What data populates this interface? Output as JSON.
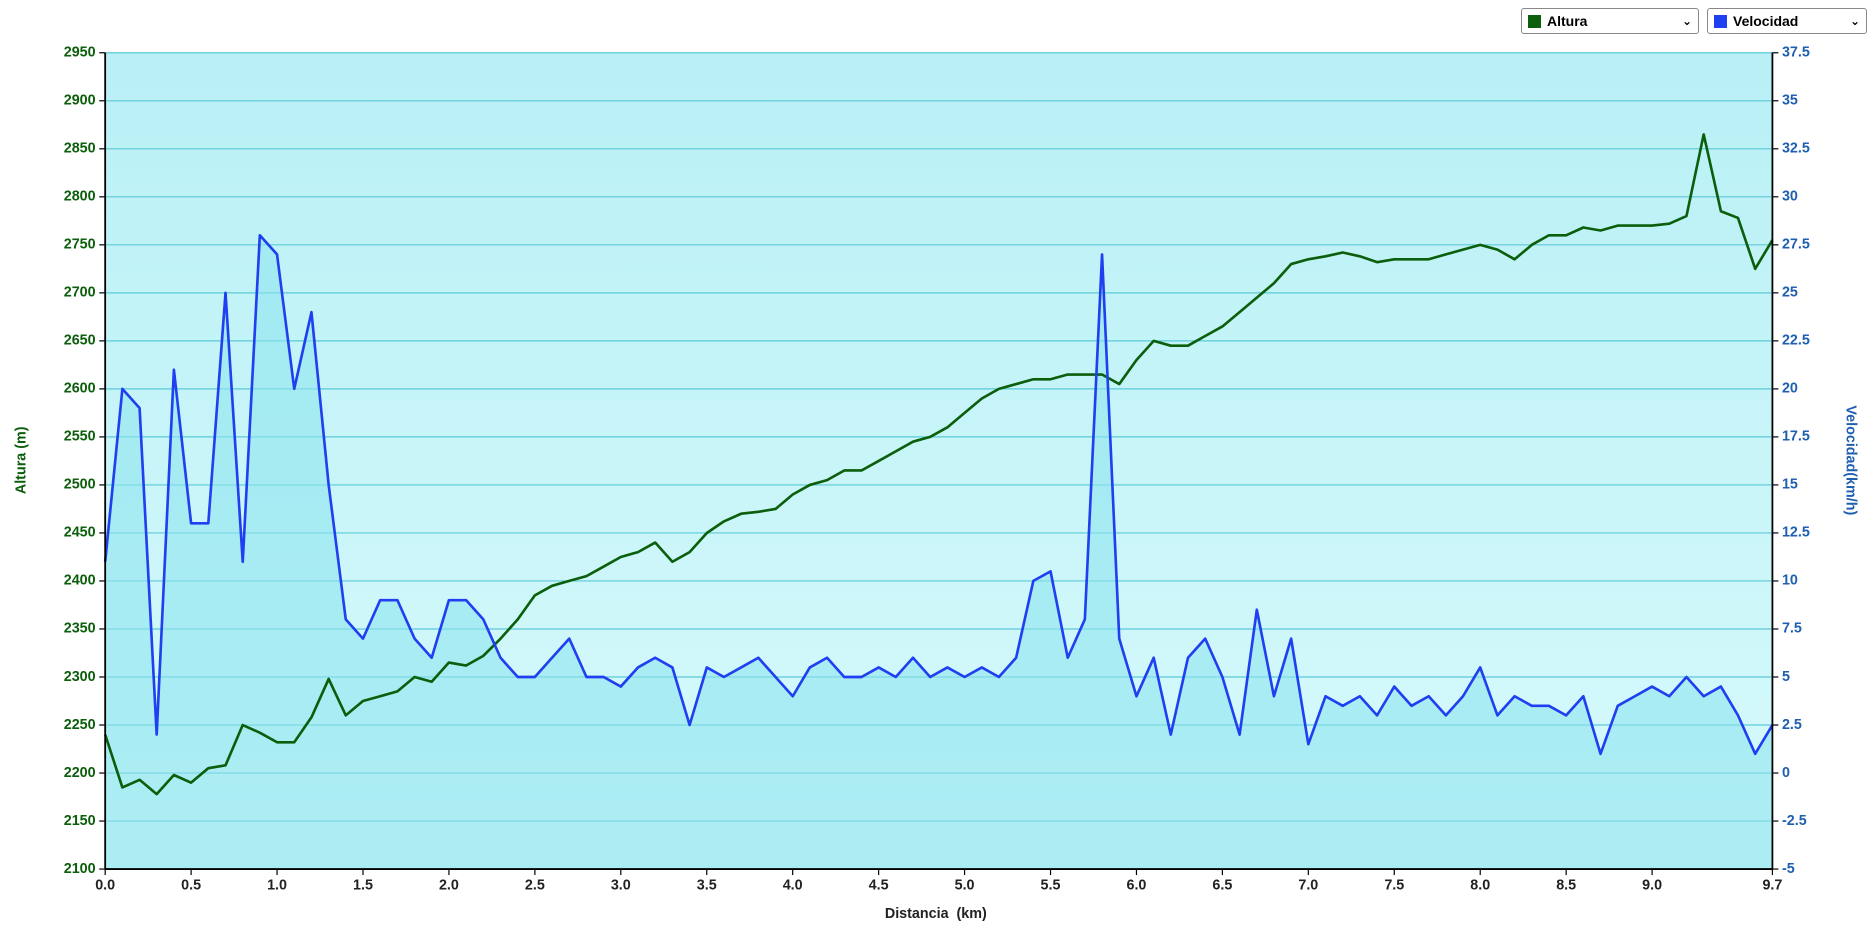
{
  "chart_data": {
    "type": "line",
    "xlabel": "Distancia  (km)",
    "ylabel": "Altura (m)",
    "y2label": "Velocidad(km/h)",
    "x": [
      0,
      0.1,
      0.2,
      0.3,
      0.4,
      0.5,
      0.6,
      0.7,
      0.8,
      0.9,
      1,
      1.1,
      1.2,
      1.3,
      1.4,
      1.5,
      1.6,
      1.7,
      1.8,
      1.9,
      2,
      2.1,
      2.2,
      2.3,
      2.4,
      2.5,
      2.6,
      2.7,
      2.8,
      2.9,
      3,
      3.1,
      3.2,
      3.3,
      3.4,
      3.5,
      3.6,
      3.7,
      3.8,
      3.9,
      4,
      4.1,
      4.2,
      4.3,
      4.4,
      4.5,
      4.6,
      4.7,
      4.8,
      4.9,
      5,
      5.1,
      5.2,
      5.3,
      5.4,
      5.5,
      5.6,
      5.7,
      5.8,
      5.9,
      6,
      6.1,
      6.2,
      6.3,
      6.4,
      6.5,
      6.6,
      6.7,
      6.8,
      6.9,
      7,
      7.1,
      7.2,
      7.3,
      7.4,
      7.5,
      7.6,
      7.7,
      7.8,
      7.9,
      8,
      8.1,
      8.2,
      8.3,
      8.4,
      8.5,
      8.6,
      8.7,
      8.8,
      8.9,
      9,
      9.1,
      9.2,
      9.3,
      9.4,
      9.5,
      9.6,
      9.7
    ],
    "series": [
      {
        "name": "Altura",
        "color": "#0b5e0b",
        "axis": "y",
        "values": [
          2240,
          2185,
          2193,
          2178,
          2198,
          2190,
          2205,
          2208,
          2250,
          2242,
          2232,
          2232,
          2258,
          2298,
          2260,
          2275,
          2280,
          2285,
          2300,
          2295,
          2315,
          2312,
          2322,
          2340,
          2360,
          2385,
          2395,
          2400,
          2405,
          2415,
          2425,
          2430,
          2440,
          2420,
          2430,
          2450,
          2462,
          2470,
          2472,
          2475,
          2490,
          2500,
          2505,
          2515,
          2515,
          2525,
          2535,
          2545,
          2550,
          2560,
          2575,
          2590,
          2600,
          2605,
          2610,
          2610,
          2615,
          2615,
          2615,
          2605,
          2630,
          2650,
          2645,
          2645,
          2655,
          2665,
          2680,
          2695,
          2710,
          2730,
          2735,
          2738,
          2742,
          2738,
          2732,
          2735,
          2735,
          2735,
          2740,
          2745,
          2750,
          2745,
          2735,
          2750,
          2760,
          2760,
          2768,
          2765,
          2770,
          2770,
          2770,
          2772,
          2780,
          2865,
          2785,
          2778,
          2725,
          2755
        ]
      },
      {
        "name": "Velocidad",
        "color": "#1f3ff0",
        "axis": "y2",
        "values": [
          11,
          20,
          19,
          2,
          21,
          13,
          13,
          25,
          11,
          28,
          27,
          20,
          24,
          15,
          8,
          7,
          9,
          9,
          7,
          6,
          9,
          9,
          8,
          6,
          5,
          5,
          6,
          7,
          5,
          5,
          4.5,
          5.5,
          6,
          5.5,
          2.5,
          5.5,
          5,
          5.5,
          6,
          5,
          4,
          5.5,
          6,
          5,
          5,
          5.5,
          5,
          6,
          5,
          5.5,
          5,
          5.5,
          5,
          6,
          10,
          10.5,
          6,
          8,
          27,
          7,
          4,
          6,
          2,
          6,
          7,
          5,
          2,
          8.5,
          4,
          7,
          1.5,
          4,
          3.5,
          4,
          3,
          4.5,
          3.5,
          4,
          3,
          4,
          5.5,
          3,
          4,
          3.5,
          3.5,
          3,
          4,
          1,
          3.5,
          4,
          4.5,
          4,
          5,
          4,
          4.5,
          3,
          1,
          2.5
        ]
      }
    ],
    "xlim": [
      0,
      9.7
    ],
    "xticks": [
      {
        "value": 0,
        "label": "0.0"
      },
      0.5,
      {
        "value": 1,
        "label": "1.0"
      },
      1.5,
      {
        "value": 2,
        "label": "2.0"
      },
      2.5,
      {
        "value": 3,
        "label": "3.0"
      },
      3.5,
      {
        "value": 4,
        "label": "4.0"
      },
      4.5,
      {
        "value": 5,
        "label": "5.0"
      },
      5.5,
      {
        "value": 6,
        "label": "6.0"
      },
      6.5,
      {
        "value": 7,
        "label": "7.0"
      },
      7.5,
      {
        "value": 8,
        "label": "8.0"
      },
      8.5,
      {
        "value": 9,
        "label": "9.0"
      },
      9.7
    ],
    "ylim": [
      2100,
      2950
    ],
    "yticks": [
      2100,
      2150,
      2200,
      2250,
      2300,
      2350,
      2400,
      2450,
      2500,
      2550,
      2600,
      2650,
      2700,
      2750,
      2800,
      2850,
      2900,
      2950
    ],
    "y2lim": [
      -5,
      37.5
    ],
    "y2ticks": [
      -5,
      -2.5,
      0,
      2.5,
      5,
      7.5,
      10,
      12.5,
      15,
      17.5,
      20,
      22.5,
      25,
      27.5,
      30,
      32.5,
      35,
      37.5
    ],
    "grid": true
  }
}
